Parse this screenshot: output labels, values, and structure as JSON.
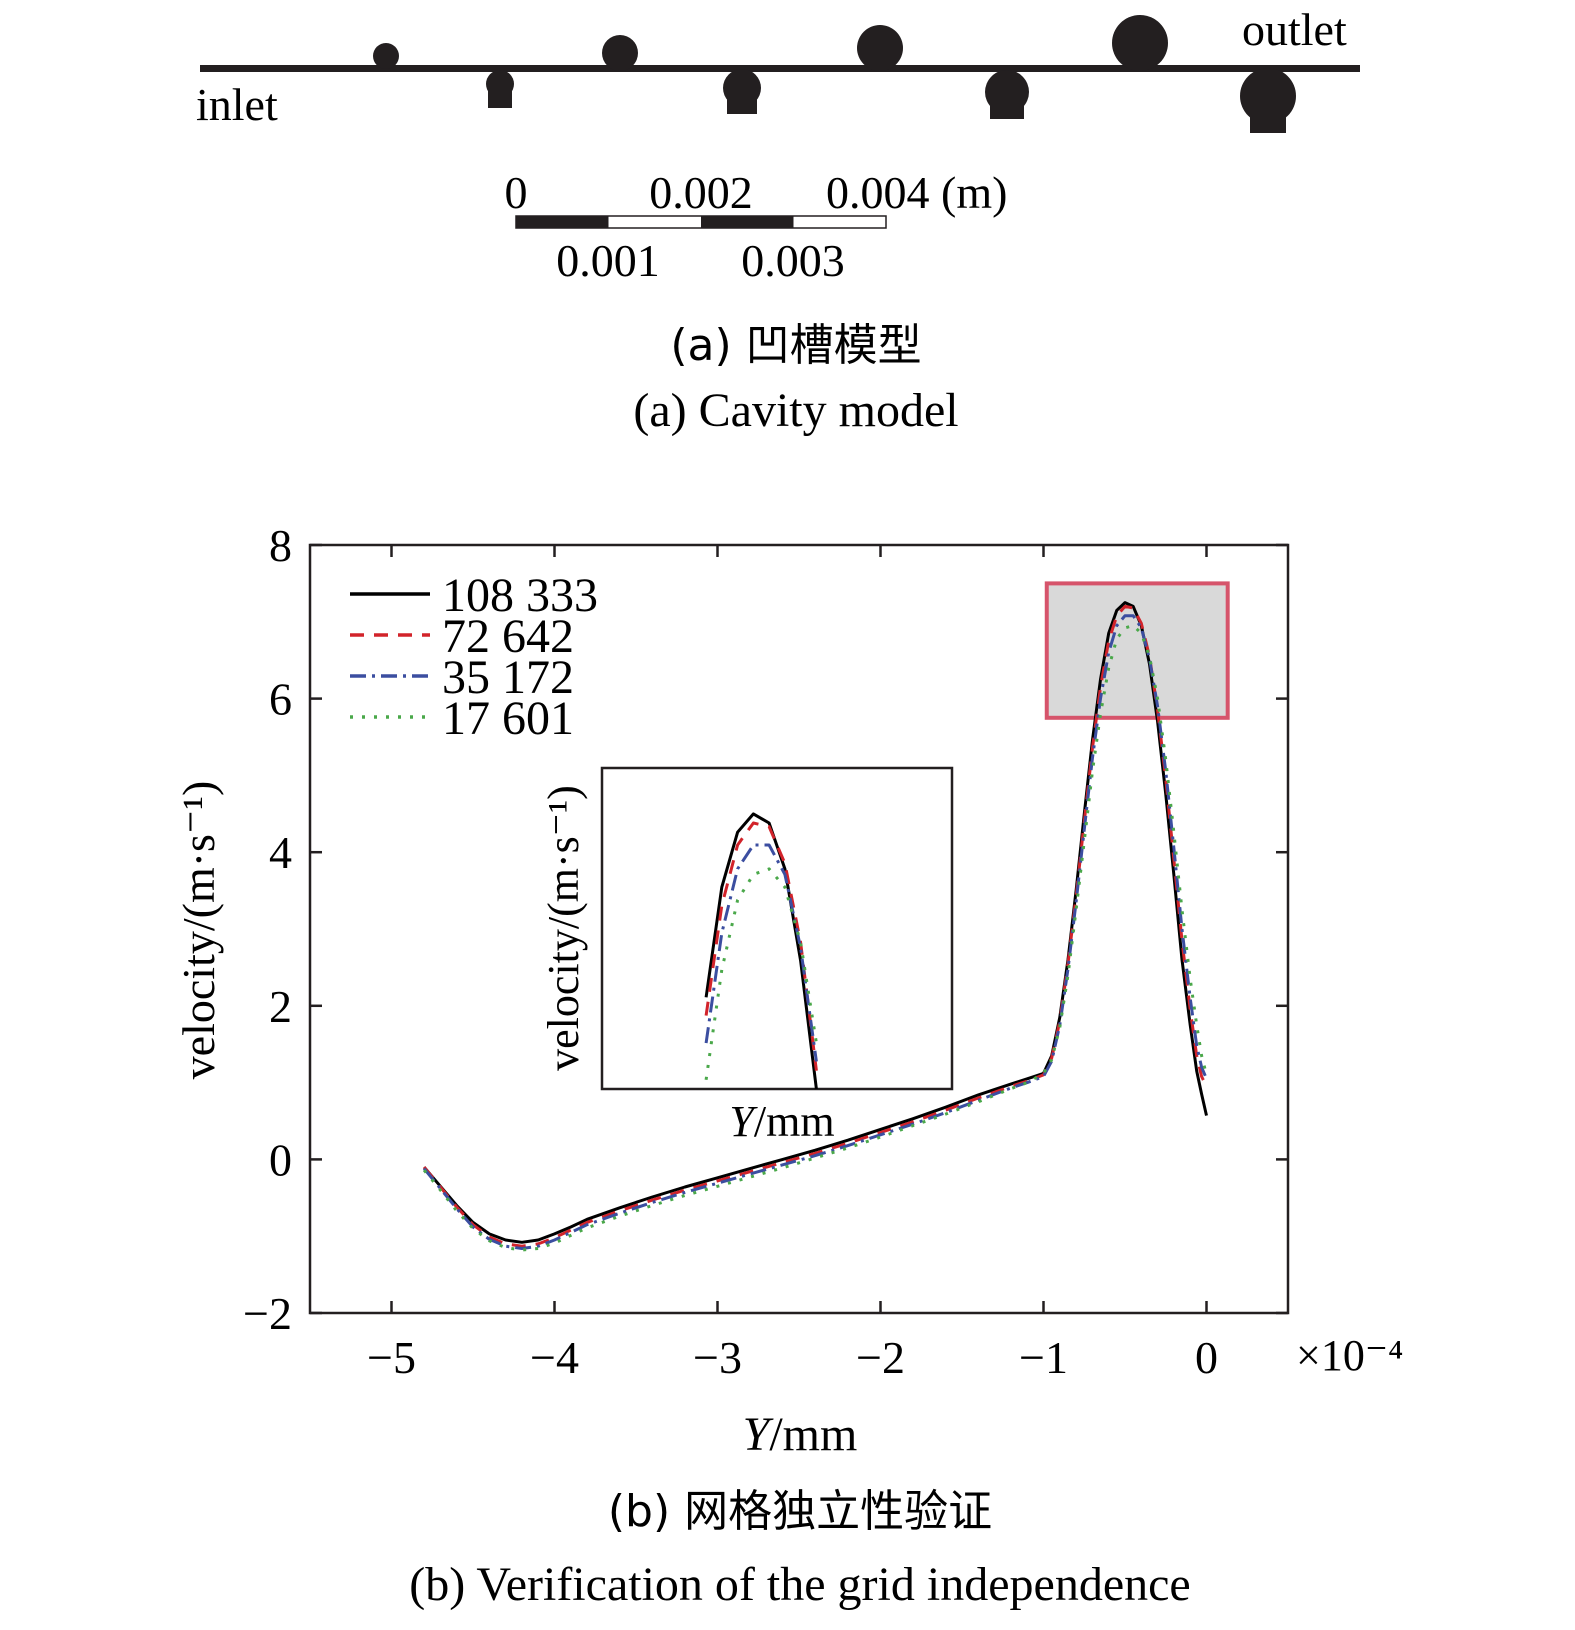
{
  "cavity_model": {
    "inlet_label": "inlet",
    "outlet_label": "outlet",
    "scale_top_labels": [
      "0",
      "0.002",
      "0.004 (m)"
    ],
    "scale_bottom_labels": [
      "0.001",
      "0.003"
    ],
    "caption_cn": "(a) 凹槽模型",
    "caption_en": "(a) Cavity model"
  },
  "chart_data": {
    "type": "line",
    "xlabel_italic": "Y",
    "xlabel_rest": "/mm",
    "ylabel": "velocity/(m·s⁻¹)",
    "x_multiplier_label": "×10⁻⁴",
    "xlim": [
      -5.5,
      0.5
    ],
    "ylim": [
      -2,
      8
    ],
    "xticks": [
      -5,
      -4,
      -3,
      -2,
      -1,
      0
    ],
    "xtick_labels": [
      "−5",
      "−4",
      "−3",
      "−2",
      "−1",
      "0"
    ],
    "yticks": [
      -2,
      0,
      2,
      4,
      6,
      8
    ],
    "ytick_labels": [
      "−2",
      "0",
      "2",
      "4",
      "6",
      "8"
    ],
    "grid": false,
    "legend_position": "top-left",
    "highlight_box": {
      "x0": -0.98,
      "x1": 0.13,
      "y0": 5.75,
      "y1": 7.5
    },
    "series": [
      {
        "name": "108 333",
        "color": "#000000",
        "dash": "solid",
        "x": [
          -4.8,
          -4.7,
          -4.6,
          -4.5,
          -4.4,
          -4.3,
          -4.2,
          -4.1,
          -4.0,
          -3.9,
          -3.8,
          -3.6,
          -3.4,
          -3.2,
          -3.0,
          -2.8,
          -2.6,
          -2.4,
          -2.2,
          -2.0,
          -1.8,
          -1.6,
          -1.4,
          -1.2,
          -1.1,
          -1.0,
          -0.95,
          -0.9,
          -0.85,
          -0.8,
          -0.75,
          -0.7,
          -0.65,
          -0.6,
          -0.55,
          -0.5,
          -0.45,
          -0.4,
          -0.35,
          -0.3,
          -0.25,
          -0.2,
          -0.15,
          -0.1,
          -0.06,
          -0.03,
          0.0
        ],
        "y": [
          -0.1,
          -0.35,
          -0.6,
          -0.82,
          -0.97,
          -1.05,
          -1.08,
          -1.05,
          -0.97,
          -0.88,
          -0.78,
          -0.63,
          -0.49,
          -0.36,
          -0.24,
          -0.12,
          0.0,
          0.12,
          0.25,
          0.39,
          0.53,
          0.68,
          0.84,
          0.98,
          1.05,
          1.12,
          1.35,
          1.85,
          2.6,
          3.5,
          4.5,
          5.45,
          6.25,
          6.85,
          7.15,
          7.25,
          7.2,
          6.95,
          6.45,
          5.7,
          4.75,
          3.7,
          2.6,
          1.75,
          1.15,
          0.85,
          0.57
        ]
      },
      {
        "name": "72 642",
        "color": "#d2232a",
        "dash": "14 10",
        "x": [
          -4.8,
          -4.7,
          -4.6,
          -4.5,
          -4.4,
          -4.3,
          -4.2,
          -4.1,
          -4.0,
          -3.9,
          -3.8,
          -3.6,
          -3.4,
          -3.2,
          -3.0,
          -2.8,
          -2.6,
          -2.4,
          -2.2,
          -2.0,
          -1.8,
          -1.6,
          -1.4,
          -1.2,
          -1.1,
          -1.0,
          -0.95,
          -0.9,
          -0.85,
          -0.8,
          -0.75,
          -0.7,
          -0.65,
          -0.6,
          -0.55,
          -0.5,
          -0.45,
          -0.4,
          -0.35,
          -0.3,
          -0.25,
          -0.2,
          -0.15,
          -0.1,
          -0.06,
          -0.03,
          0.0
        ],
        "y": [
          -0.1,
          -0.36,
          -0.62,
          -0.85,
          -1.01,
          -1.1,
          -1.13,
          -1.1,
          -1.02,
          -0.92,
          -0.82,
          -0.67,
          -0.53,
          -0.4,
          -0.28,
          -0.16,
          -0.04,
          0.08,
          0.21,
          0.35,
          0.49,
          0.64,
          0.8,
          0.95,
          1.02,
          1.1,
          1.32,
          1.8,
          2.55,
          3.42,
          4.4,
          5.35,
          6.15,
          6.75,
          7.08,
          7.2,
          7.18,
          6.98,
          6.55,
          5.85,
          4.95,
          3.9,
          2.85,
          1.95,
          1.35,
          1.08,
          0.95
        ]
      },
      {
        "name": "35 172",
        "color": "#3b4ea0",
        "dash": "16 6 3 6",
        "x": [
          -4.8,
          -4.7,
          -4.6,
          -4.5,
          -4.4,
          -4.3,
          -4.2,
          -4.1,
          -4.0,
          -3.9,
          -3.8,
          -3.6,
          -3.4,
          -3.2,
          -3.0,
          -2.8,
          -2.6,
          -2.4,
          -2.2,
          -2.0,
          -1.8,
          -1.6,
          -1.4,
          -1.2,
          -1.1,
          -1.0,
          -0.95,
          -0.9,
          -0.85,
          -0.8,
          -0.75,
          -0.7,
          -0.65,
          -0.6,
          -0.55,
          -0.5,
          -0.45,
          -0.4,
          -0.35,
          -0.3,
          -0.25,
          -0.2,
          -0.15,
          -0.1,
          -0.06,
          -0.03,
          0.0
        ],
        "y": [
          -0.12,
          -0.38,
          -0.64,
          -0.88,
          -1.04,
          -1.13,
          -1.16,
          -1.13,
          -1.05,
          -0.95,
          -0.85,
          -0.7,
          -0.56,
          -0.43,
          -0.31,
          -0.19,
          -0.07,
          0.05,
          0.18,
          0.32,
          0.46,
          0.61,
          0.77,
          0.93,
          1.0,
          1.08,
          1.28,
          1.75,
          2.48,
          3.35,
          4.3,
          5.22,
          6.0,
          6.6,
          6.95,
          7.08,
          7.08,
          6.92,
          6.52,
          5.9,
          5.05,
          4.05,
          3.0,
          2.1,
          1.48,
          1.2,
          1.05
        ]
      },
      {
        "name": "17 601",
        "color": "#4aa84a",
        "dash": "3 9",
        "x": [
          -4.8,
          -4.7,
          -4.6,
          -4.5,
          -4.4,
          -4.3,
          -4.2,
          -4.1,
          -4.0,
          -3.9,
          -3.8,
          -3.6,
          -3.4,
          -3.2,
          -3.0,
          -2.8,
          -2.6,
          -2.4,
          -2.2,
          -2.0,
          -1.8,
          -1.6,
          -1.4,
          -1.2,
          -1.1,
          -1.0,
          -0.95,
          -0.9,
          -0.85,
          -0.8,
          -0.75,
          -0.7,
          -0.65,
          -0.6,
          -0.55,
          -0.5,
          -0.45,
          -0.4,
          -0.35,
          -0.3,
          -0.25,
          -0.2,
          -0.15,
          -0.1,
          -0.06,
          -0.03,
          0.0
        ],
        "y": [
          -0.14,
          -0.4,
          -0.67,
          -0.9,
          -1.06,
          -1.15,
          -1.18,
          -1.16,
          -1.09,
          -0.99,
          -0.89,
          -0.74,
          -0.6,
          -0.47,
          -0.35,
          -0.23,
          -0.11,
          0.02,
          0.15,
          0.29,
          0.44,
          0.59,
          0.75,
          0.92,
          1.0,
          1.12,
          1.3,
          1.72,
          2.4,
          3.25,
          4.15,
          5.05,
          5.8,
          6.4,
          6.78,
          6.92,
          6.95,
          6.85,
          6.55,
          6.0,
          5.2,
          4.25,
          3.25,
          2.35,
          1.75,
          1.35,
          1.1
        ]
      }
    ],
    "inset": {
      "ylabel": "velocity/(m·s⁻¹)",
      "xlabel_italic": "Y",
      "xlabel_rest": "/mm",
      "xlim": [
        -0.98,
        0.13
      ],
      "ylim": [
        5.75,
        7.5
      ]
    }
  },
  "caption_b_cn": "(b) 网格独立性验证",
  "caption_b_en": "(b) Verification of the grid independence"
}
